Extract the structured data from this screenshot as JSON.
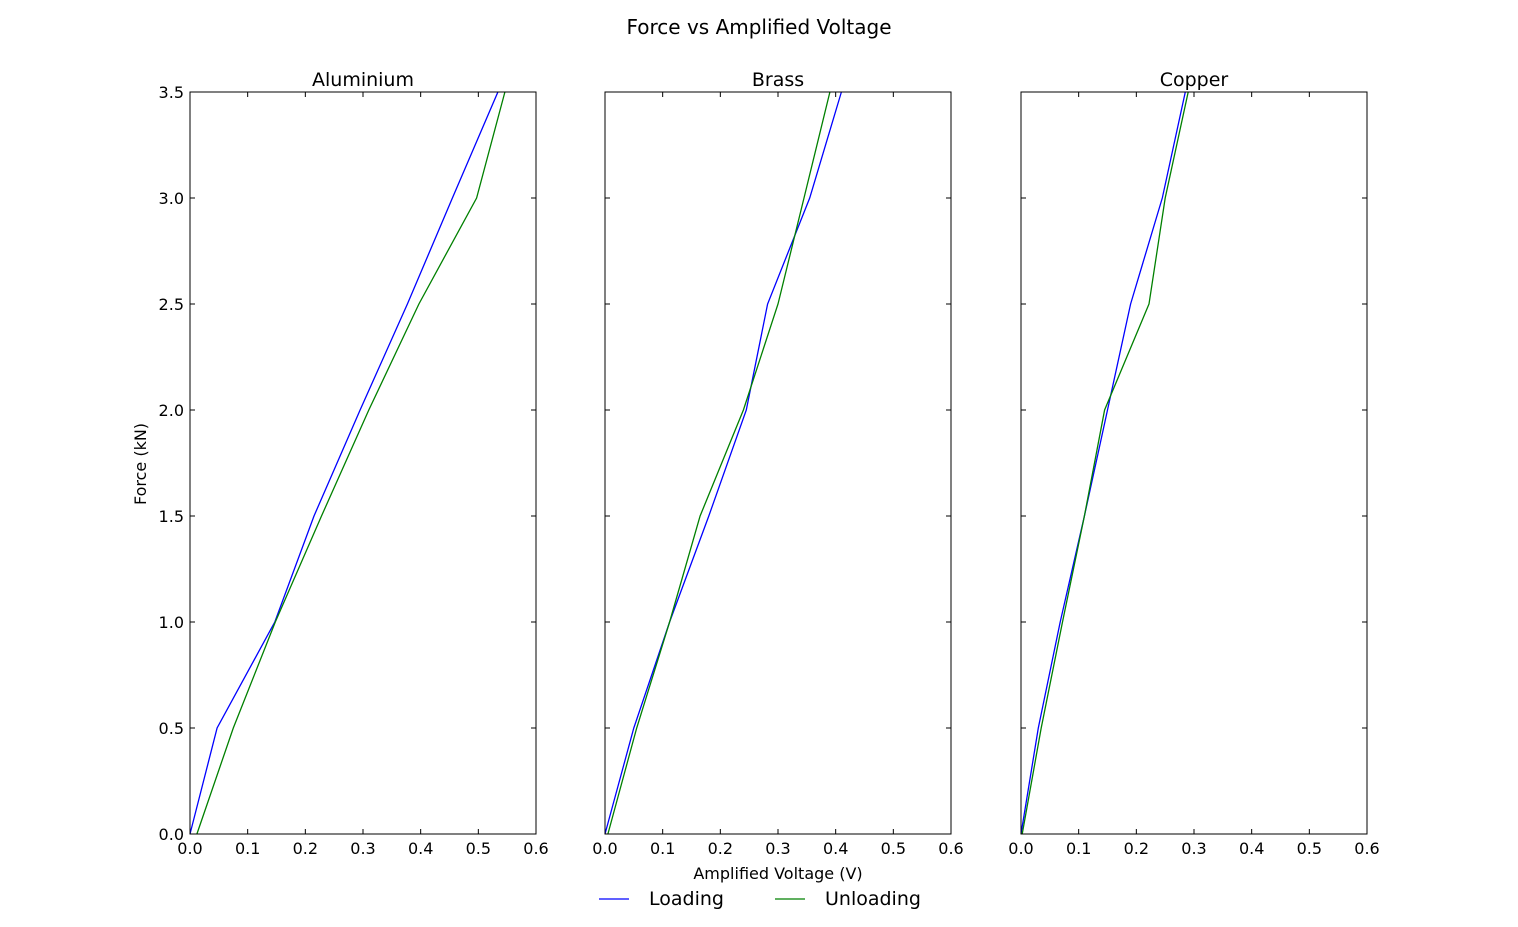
{
  "figure": {
    "suptitle": "Force vs Amplified Voltage",
    "xlabel": "Amplified Voltage (V)",
    "ylabel": "Force (kN)"
  },
  "legend": {
    "placement": "bottom-center",
    "entries": [
      {
        "label": "Loading",
        "color": "#0000ff"
      },
      {
        "label": "Unloading",
        "color": "#008000"
      }
    ]
  },
  "chart_data": [
    {
      "type": "line",
      "title": "Aluminium",
      "xlabel": "",
      "ylabel": "Force (kN)",
      "xlim": [
        0,
        0.6
      ],
      "ylim": [
        0,
        3.5
      ],
      "xticks": [
        "0.0",
        "0.1",
        "0.2",
        "0.3",
        "0.4",
        "0.5",
        "0.6"
      ],
      "yticks": [
        "0.0",
        "0.5",
        "1.0",
        "1.5",
        "2.0",
        "2.5",
        "3.0",
        "3.5"
      ],
      "grid": false,
      "series": [
        {
          "name": "Loading",
          "color": "#0000ff",
          "x": [
            0.0,
            0.047,
            0.147,
            0.215,
            0.295,
            0.377,
            0.455,
            0.534
          ],
          "y": [
            0.0,
            0.5,
            1.0,
            1.5,
            2.0,
            2.5,
            3.0,
            3.5
          ]
        },
        {
          "name": "Unloading",
          "color": "#008000",
          "x": [
            0.012,
            0.075,
            0.148,
            0.228,
            0.31,
            0.397,
            0.497,
            0.546
          ],
          "y": [
            0.0,
            0.5,
            1.0,
            1.5,
            2.0,
            2.5,
            3.0,
            3.5
          ]
        }
      ]
    },
    {
      "type": "line",
      "title": "Brass",
      "xlabel": "Amplified Voltage (V)",
      "ylabel": "",
      "xlim": [
        0,
        0.6
      ],
      "ylim": [
        0,
        3.5
      ],
      "xticks": [
        "0.0",
        "0.1",
        "0.2",
        "0.3",
        "0.4",
        "0.5",
        "0.6"
      ],
      "yticks": [],
      "grid": false,
      "series": [
        {
          "name": "Loading",
          "color": "#0000ff",
          "x": [
            0.0,
            0.05,
            0.112,
            0.18,
            0.245,
            0.282,
            0.355,
            0.41
          ],
          "y": [
            0.0,
            0.5,
            1.0,
            1.5,
            2.0,
            2.5,
            3.0,
            3.5
          ]
        },
        {
          "name": "Unloading",
          "color": "#008000",
          "x": [
            0.005,
            0.055,
            0.112,
            0.165,
            0.24,
            0.3,
            0.345,
            0.39
          ],
          "y": [
            0.0,
            0.5,
            1.0,
            1.5,
            2.0,
            2.5,
            3.0,
            3.5
          ]
        }
      ]
    },
    {
      "type": "line",
      "title": "Copper",
      "xlabel": "",
      "ylabel": "",
      "xlim": [
        0,
        0.6
      ],
      "ylim": [
        0,
        3.5
      ],
      "xticks": [
        "0.0",
        "0.1",
        "0.2",
        "0.3",
        "0.4",
        "0.5",
        "0.6"
      ],
      "yticks": [],
      "grid": false,
      "series": [
        {
          "name": "Loading",
          "color": "#0000ff",
          "x": [
            0.0,
            0.03,
            0.068,
            0.11,
            0.15,
            0.19,
            0.245,
            0.285
          ],
          "y": [
            0.0,
            0.5,
            1.0,
            1.5,
            2.0,
            2.5,
            3.0,
            3.5
          ]
        },
        {
          "name": "Unloading",
          "color": "#008000",
          "x": [
            0.002,
            0.035,
            0.072,
            0.11,
            0.145,
            0.222,
            0.25,
            0.29
          ],
          "y": [
            0.0,
            0.5,
            1.0,
            1.5,
            2.0,
            2.5,
            3.0,
            3.5
          ]
        }
      ]
    }
  ]
}
